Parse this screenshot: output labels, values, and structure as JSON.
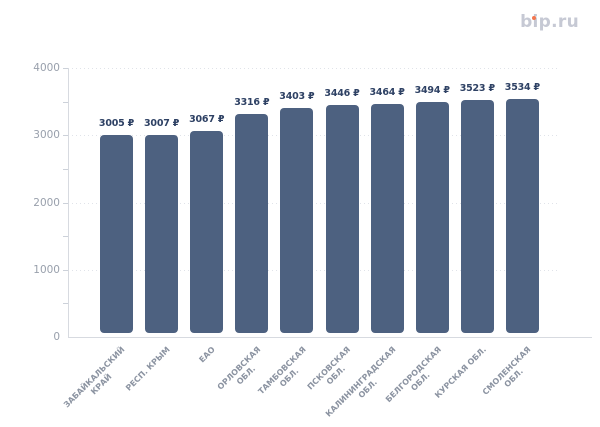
{
  "logo": {
    "text": "bip.ru",
    "color": "#c6c9d4",
    "dot_color": "#f4774f"
  },
  "chart_data": {
    "type": "bar",
    "title": "",
    "xlabel": "",
    "ylabel": "",
    "categories": [
      "ЗАБАЙКАЛЬСКИЙ КРАЙ",
      "РЕСП. КРЫМ",
      "ЕАО",
      "ОРЛОВСКАЯ ОБЛ.",
      "ТАМБОВСКАЯ ОБЛ.",
      "ПСКОВСКАЯ ОБЛ.",
      "КАЛИНИНГРАДСКАЯ ОБЛ.",
      "БЕЛГОРОДСКАЯ ОБЛ.",
      "КУРСКАЯ ОБЛ.",
      "СМОЛЕНСКАЯ ОБЛ."
    ],
    "x_label_lines": [
      [
        "ЗАБАЙКАЛЬСКИЙ",
        "КРАЙ"
      ],
      [
        "РЕСП. КРЫМ"
      ],
      [
        "ЕАО"
      ],
      [
        "ОРЛОВСКАЯ",
        "ОБЛ."
      ],
      [
        "ТАМБОВСКАЯ",
        "ОБЛ."
      ],
      [
        "ПСКОВСКАЯ",
        "ОБЛ."
      ],
      [
        "КАЛИНИНГРАДСКАЯ",
        "ОБЛ."
      ],
      [
        "БЕЛГОРОДСКАЯ",
        "ОБЛ."
      ],
      [
        "КУРСКАЯ ОБЛ."
      ],
      [
        "СМОЛЕНСКАЯ",
        "ОБЛ."
      ]
    ],
    "values": [
      3005,
      3007,
      3067,
      3316,
      3403,
      3446,
      3464,
      3494,
      3523,
      3534
    ],
    "value_labels": [
      "3005 ₽",
      "3007 ₽",
      "3067 ₽",
      "3316 ₽",
      "3403 ₽",
      "3446 ₽",
      "3464 ₽",
      "3494 ₽",
      "3523 ₽",
      "3534 ₽"
    ],
    "unit": "₽",
    "y_tick_labels": [
      "4000",
      "3000",
      "2000",
      "1000",
      "0"
    ],
    "y_ticks": [
      4000,
      3000,
      2000,
      1000,
      0
    ],
    "ylim": [
      0,
      4000
    ],
    "grid": "dotted horizontal lines at 1000-step major ticks, minor axis ticks every 500",
    "legend": "none",
    "bar_color": "#4d6180",
    "value_label_color": "#2e4164",
    "axis_label_color": "#99a0ac",
    "x_label_color": "#8b93a1"
  }
}
